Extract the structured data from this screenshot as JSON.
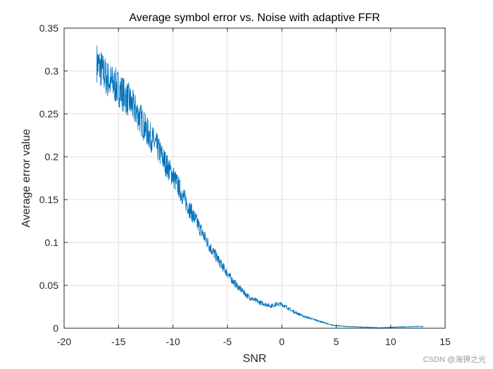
{
  "chart_data": {
    "type": "line",
    "title": "Average symbol error vs. Noise with adaptive FFR",
    "xlabel": "SNR",
    "ylabel": "Average error value",
    "xlim": [
      -20,
      15
    ],
    "ylim": [
      0,
      0.35
    ],
    "xticks": [
      -20,
      -15,
      -10,
      -5,
      0,
      5,
      10,
      15
    ],
    "yticks": [
      0,
      0.05,
      0.1,
      0.15,
      0.2,
      0.25,
      0.3,
      0.35
    ],
    "xtick_labels": [
      "-20",
      "-15",
      "-10",
      "-5",
      "0",
      "5",
      "10",
      "15"
    ],
    "ytick_labels": [
      "0",
      "0.05",
      "0.1",
      "0.15",
      "0.2",
      "0.25",
      "0.3",
      "0.35"
    ],
    "grid": true,
    "line_color": "#0072BD",
    "series": [
      {
        "x": [
          -17,
          -16.5,
          -16,
          -15.5,
          -15,
          -14.5,
          -14,
          -13.5,
          -13,
          -12.5,
          -12,
          -11.5,
          -11,
          -10.5,
          -10,
          -9.5,
          -9,
          -8.5,
          -8,
          -7.5,
          -7,
          -6.5,
          -6,
          -5.5,
          -5,
          -4.5,
          -4,
          -3.5,
          -3,
          -2.5,
          -2,
          -1.5,
          -1,
          -0.5,
          0,
          0.5,
          1,
          1.5,
          2,
          2.5,
          3,
          3.5,
          4,
          4.5,
          5,
          6,
          7,
          8,
          9,
          10,
          11,
          12,
          13
        ],
        "y": [
          0.31,
          0.3,
          0.29,
          0.285,
          0.28,
          0.272,
          0.265,
          0.255,
          0.245,
          0.232,
          0.222,
          0.212,
          0.2,
          0.188,
          0.178,
          0.165,
          0.152,
          0.14,
          0.128,
          0.116,
          0.104,
          0.093,
          0.083,
          0.073,
          0.064,
          0.055,
          0.048,
          0.042,
          0.036,
          0.033,
          0.03,
          0.028,
          0.026,
          0.028,
          0.028,
          0.024,
          0.02,
          0.017,
          0.014,
          0.012,
          0.01,
          0.008,
          0.006,
          0.004,
          0.003,
          0.002,
          0.0015,
          0.001,
          0.0005,
          0.001,
          0.0015,
          0.002,
          0.002
        ]
      }
    ]
  },
  "watermark": "CSDN @海钾之光"
}
